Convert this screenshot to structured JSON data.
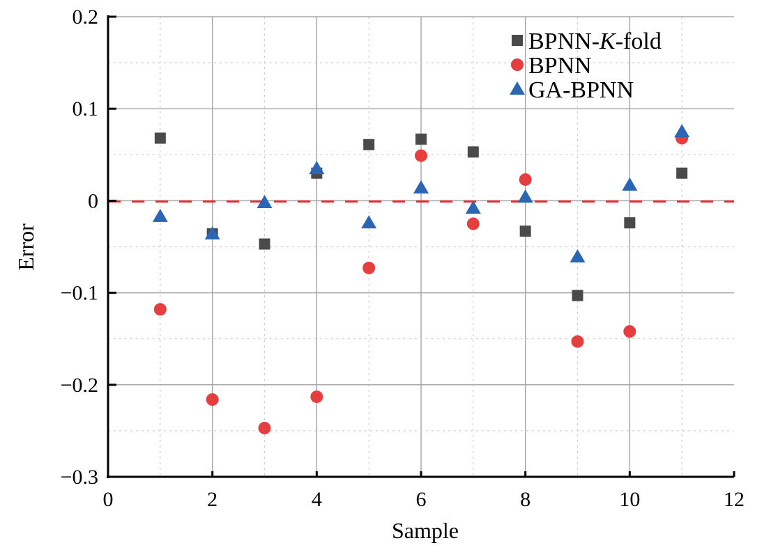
{
  "chart_data": {
    "type": "scatter",
    "title": "",
    "xlabel": "Sample",
    "ylabel": "Error",
    "xlim": [
      0,
      12
    ],
    "ylim": [
      -0.3,
      0.2
    ],
    "xticks": [
      "0",
      "2",
      "4",
      "6",
      "8",
      "10",
      "12"
    ],
    "yticks": [
      "0.2",
      "0.1",
      "0",
      "−0.1",
      "−0.2",
      "−0.3"
    ],
    "grid": true,
    "legend_position": "top-right",
    "reference_line": {
      "y": 0,
      "color": "#e8262a",
      "style": "dashed"
    },
    "x": [
      1,
      2,
      3,
      4,
      5,
      6,
      7,
      8,
      9,
      10,
      11
    ],
    "series": [
      {
        "name": "BPNN-K-fold",
        "marker": "square",
        "color": "#4a4a4a",
        "values": [
          0.068,
          -0.036,
          -0.047,
          0.03,
          0.061,
          0.067,
          0.053,
          -0.033,
          -0.103,
          -0.024,
          0.03
        ]
      },
      {
        "name": "BPNN",
        "marker": "circle",
        "color": "#e53e3e",
        "values": [
          -0.118,
          -0.216,
          -0.247,
          -0.213,
          -0.073,
          0.049,
          -0.025,
          0.023,
          -0.153,
          -0.142,
          0.068
        ]
      },
      {
        "name": "GA-BPNN",
        "marker": "triangle",
        "color": "#2a66b4",
        "values": [
          -0.017,
          -0.036,
          -0.002,
          0.035,
          -0.024,
          0.014,
          -0.008,
          0.004,
          -0.061,
          0.017,
          0.075
        ]
      }
    ]
  }
}
